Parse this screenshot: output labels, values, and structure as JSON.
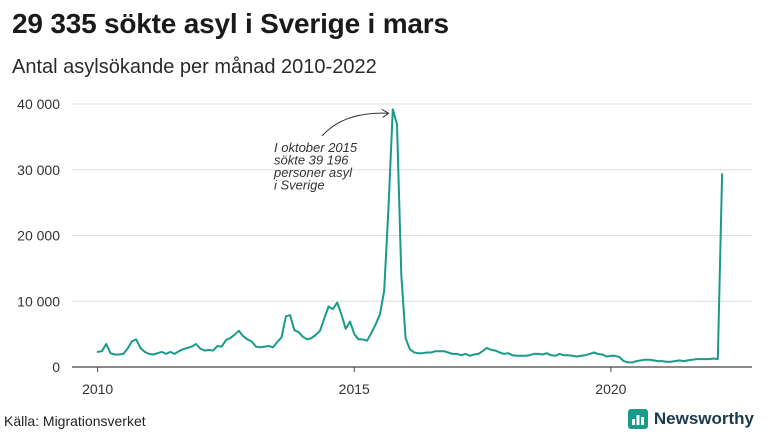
{
  "header": {
    "title": "29 335 sökte asyl i Sverige i mars",
    "subtitle": "Antal asylsökande per månad 2010-2022"
  },
  "footer": {
    "source": "Källa: Migrationsverket",
    "brand": "Newsworthy",
    "brand_icon": "bar-chart-logo-icon"
  },
  "colors": {
    "line": "#1a9a8a",
    "grid": "#dddddd",
    "axis": "#444444",
    "brand": "#1b3a4b"
  },
  "chart_data": {
    "type": "line",
    "title": "29 335 sökte asyl i Sverige i mars",
    "subtitle": "Antal asylsökande per månad 2010-2022",
    "x_ticks": [
      2010,
      2015,
      2020
    ],
    "x_tick_labels": [
      "2010",
      "2015",
      "2020"
    ],
    "y_ticks": [
      0,
      10000,
      20000,
      30000,
      40000
    ],
    "y_tick_labels": [
      "0",
      "10 000",
      "20 000",
      "30 000",
      "40 000"
    ],
    "ylim": [
      0,
      40000
    ],
    "xlim": [
      2009.5,
      2022.75
    ],
    "grid": true,
    "annotation": {
      "lines": [
        "I oktober 2015",
        "sökte 39 196",
        "personer asyl",
        "i Sverige"
      ],
      "target_x": 2015.75,
      "target_y": 39196
    },
    "series": [
      {
        "values": [
          [
            2010.0,
            2300
          ],
          [
            2010.083,
            2400
          ],
          [
            2010.167,
            3500
          ],
          [
            2010.25,
            2100
          ],
          [
            2010.333,
            1900
          ],
          [
            2010.417,
            1900
          ],
          [
            2010.5,
            2000
          ],
          [
            2010.583,
            2800
          ],
          [
            2010.667,
            3900
          ],
          [
            2010.75,
            4200
          ],
          [
            2010.833,
            2900
          ],
          [
            2010.917,
            2300
          ],
          [
            2011.0,
            2000
          ],
          [
            2011.083,
            1900
          ],
          [
            2011.167,
            2100
          ],
          [
            2011.25,
            2300
          ],
          [
            2011.333,
            2000
          ],
          [
            2011.417,
            2300
          ],
          [
            2011.5,
            2000
          ],
          [
            2011.583,
            2400
          ],
          [
            2011.667,
            2700
          ],
          [
            2011.75,
            2900
          ],
          [
            2011.833,
            3100
          ],
          [
            2011.917,
            3500
          ],
          [
            2012.0,
            2800
          ],
          [
            2012.083,
            2500
          ],
          [
            2012.167,
            2600
          ],
          [
            2012.25,
            2500
          ],
          [
            2012.333,
            3200
          ],
          [
            2012.417,
            3100
          ],
          [
            2012.5,
            4100
          ],
          [
            2012.583,
            4400
          ],
          [
            2012.667,
            4900
          ],
          [
            2012.75,
            5500
          ],
          [
            2012.833,
            4700
          ],
          [
            2012.917,
            4200
          ],
          [
            2013.0,
            3900
          ],
          [
            2013.083,
            3100
          ],
          [
            2013.167,
            3000
          ],
          [
            2013.25,
            3100
          ],
          [
            2013.333,
            3200
          ],
          [
            2013.417,
            3000
          ],
          [
            2013.5,
            3800
          ],
          [
            2013.583,
            4500
          ],
          [
            2013.667,
            7700
          ],
          [
            2013.75,
            7900
          ],
          [
            2013.833,
            5600
          ],
          [
            2013.917,
            5300
          ],
          [
            2014.0,
            4600
          ],
          [
            2014.083,
            4200
          ],
          [
            2014.167,
            4400
          ],
          [
            2014.25,
            4900
          ],
          [
            2014.333,
            5500
          ],
          [
            2014.417,
            7400
          ],
          [
            2014.5,
            9200
          ],
          [
            2014.583,
            8800
          ],
          [
            2014.667,
            9800
          ],
          [
            2014.75,
            8000
          ],
          [
            2014.833,
            5800
          ],
          [
            2014.917,
            6900
          ],
          [
            2015.0,
            5000
          ],
          [
            2015.083,
            4200
          ],
          [
            2015.167,
            4200
          ],
          [
            2015.25,
            4000
          ],
          [
            2015.333,
            5200
          ],
          [
            2015.417,
            6500
          ],
          [
            2015.5,
            8000
          ],
          [
            2015.583,
            11600
          ],
          [
            2015.667,
            24300
          ],
          [
            2015.75,
            39196
          ],
          [
            2015.833,
            36900
          ],
          [
            2015.917,
            14000
          ],
          [
            2016.0,
            4400
          ],
          [
            2016.083,
            2700
          ],
          [
            2016.167,
            2200
          ],
          [
            2016.25,
            2100
          ],
          [
            2016.333,
            2100
          ],
          [
            2016.417,
            2200
          ],
          [
            2016.5,
            2200
          ],
          [
            2016.583,
            2400
          ],
          [
            2016.667,
            2400
          ],
          [
            2016.75,
            2400
          ],
          [
            2016.833,
            2200
          ],
          [
            2016.917,
            2000
          ],
          [
            2017.0,
            2000
          ],
          [
            2017.083,
            1800
          ],
          [
            2017.167,
            2000
          ],
          [
            2017.25,
            1700
          ],
          [
            2017.333,
            1900
          ],
          [
            2017.417,
            2000
          ],
          [
            2017.5,
            2400
          ],
          [
            2017.583,
            2900
          ],
          [
            2017.667,
            2600
          ],
          [
            2017.75,
            2500
          ],
          [
            2017.833,
            2200
          ],
          [
            2017.917,
            2000
          ],
          [
            2018.0,
            2100
          ],
          [
            2018.083,
            1800
          ],
          [
            2018.167,
            1700
          ],
          [
            2018.25,
            1700
          ],
          [
            2018.333,
            1700
          ],
          [
            2018.417,
            1800
          ],
          [
            2018.5,
            2000
          ],
          [
            2018.583,
            2000
          ],
          [
            2018.667,
            1900
          ],
          [
            2018.75,
            2100
          ],
          [
            2018.833,
            1800
          ],
          [
            2018.917,
            1700
          ],
          [
            2019.0,
            2000
          ],
          [
            2019.083,
            1800
          ],
          [
            2019.167,
            1800
          ],
          [
            2019.25,
            1700
          ],
          [
            2019.333,
            1600
          ],
          [
            2019.417,
            1700
          ],
          [
            2019.5,
            1800
          ],
          [
            2019.583,
            2000
          ],
          [
            2019.667,
            2200
          ],
          [
            2019.75,
            2000
          ],
          [
            2019.833,
            1900
          ],
          [
            2019.917,
            1600
          ],
          [
            2020.0,
            1700
          ],
          [
            2020.083,
            1700
          ],
          [
            2020.167,
            1500
          ],
          [
            2020.25,
            900
          ],
          [
            2020.333,
            700
          ],
          [
            2020.417,
            700
          ],
          [
            2020.5,
            900
          ],
          [
            2020.583,
            1000
          ],
          [
            2020.667,
            1100
          ],
          [
            2020.75,
            1100
          ],
          [
            2020.833,
            1000
          ],
          [
            2020.917,
            900
          ],
          [
            2021.0,
            900
          ],
          [
            2021.083,
            800
          ],
          [
            2021.167,
            800
          ],
          [
            2021.25,
            900
          ],
          [
            2021.333,
            1000
          ],
          [
            2021.417,
            900
          ],
          [
            2021.5,
            1000
          ],
          [
            2021.583,
            1100
          ],
          [
            2021.667,
            1200
          ],
          [
            2021.75,
            1200
          ],
          [
            2021.833,
            1200
          ],
          [
            2021.917,
            1200
          ],
          [
            2022.0,
            1300
          ],
          [
            2022.083,
            1200
          ],
          [
            2022.167,
            29335
          ]
        ]
      }
    ]
  }
}
